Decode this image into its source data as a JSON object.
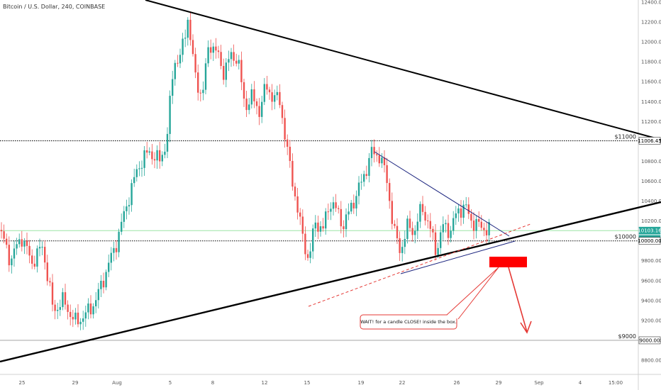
{
  "header": {
    "title": "Bitcoin / U.S. Dollar, 240, COINBASE"
  },
  "chart_data": {
    "type": "candlestick",
    "title": "Bitcoin / U.S. Dollar, 240, COINBASE",
    "ylim": [
      8800,
      12400
    ],
    "y_ticks": [
      8800,
      9000,
      9200,
      9400,
      9600,
      9800,
      10000,
      10200,
      10400,
      10600,
      10800,
      11000,
      11200,
      11400,
      11600,
      11800,
      12000,
      12200,
      12400
    ],
    "y_tick_labels": [
      "8800.00",
      "9000.00",
      "9200.00",
      "9400.00",
      "9600.00",
      "9800.00",
      "10000.00",
      "10200.00",
      "10400.00",
      "10600.00",
      "10800.00",
      "11000.00",
      "11200.00",
      "11400.00",
      "11600.00",
      "11800.00",
      "12000.00",
      "12200.00",
      "12400.00"
    ],
    "x_tick_labels": [
      "25",
      "29",
      "Aug",
      "5",
      "8",
      "12",
      "15",
      "19",
      "22",
      "26",
      "29",
      "Sep",
      "4",
      "15:00"
    ],
    "price_badges": [
      {
        "label": "11006.45",
        "value": 11006.45,
        "color": "#ffffff",
        "text_color": "#000000"
      },
      {
        "label": "10103.16",
        "value": 10103.16,
        "color": "#26a69a",
        "text_color": "#ffffff"
      },
      {
        "label": "03:56:59",
        "value": 10020,
        "color": "#26a69a",
        "text_color": "#ffffff"
      },
      {
        "label": "10000.00",
        "value": 10000,
        "color": "#ffffff",
        "text_color": "#000000"
      },
      {
        "label": "9000.00",
        "value": 9000,
        "color": "#ffffff",
        "text_color": "#000000"
      }
    ],
    "levels": [
      {
        "label": "$11000",
        "value": 11006.45,
        "style": "dotted"
      },
      {
        "label": "$10000",
        "value": 10000,
        "style": "dotted"
      },
      {
        "label": "$9000",
        "value": 9000,
        "style": "solid-grey"
      }
    ],
    "annotation": "WAIT! for a candle CLOSE! inside the box.",
    "colors": {
      "up": "#26a69a",
      "down": "#ef5350",
      "box": "#ff0000",
      "trend": "#000000",
      "wedge": "#1a237e",
      "current_price": "#9be3a6"
    },
    "grid": false
  }
}
